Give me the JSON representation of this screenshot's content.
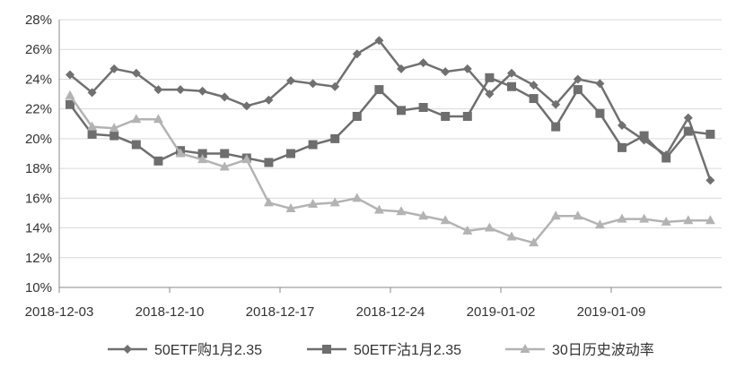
{
  "chart_data": {
    "type": "line",
    "title": "",
    "xlabel": "",
    "ylabel": "",
    "ylim": [
      0.1,
      0.28
    ],
    "y_ticks": [
      "10%",
      "12%",
      "14%",
      "16%",
      "18%",
      "20%",
      "22%",
      "24%",
      "26%",
      "28%"
    ],
    "x_tick_labels": [
      "2018-12-03",
      "2018-12-10",
      "2018-12-17",
      "2018-12-24",
      "2019-01-02",
      "2019-01-09"
    ],
    "grid": "horizontal",
    "legend_position": "bottom",
    "dates": [
      "2018-12-03",
      "2018-12-04",
      "2018-12-05",
      "2018-12-06",
      "2018-12-07",
      "2018-12-10",
      "2018-12-11",
      "2018-12-12",
      "2018-12-13",
      "2018-12-14",
      "2018-12-17",
      "2018-12-18",
      "2018-12-19",
      "2018-12-20",
      "2018-12-21",
      "2018-12-24",
      "2018-12-25",
      "2018-12-26",
      "2018-12-27",
      "2018-12-28",
      "2019-01-02",
      "2019-01-03",
      "2019-01-04",
      "2019-01-07",
      "2019-01-08",
      "2019-01-09",
      "2019-01-10",
      "2019-01-11",
      "2019-01-14",
      "2019-01-15"
    ],
    "series": [
      {
        "name": "50ETF购1月2.35",
        "marker": "diamond",
        "color": "#707070",
        "values": [
          0.243,
          0.231,
          0.247,
          0.244,
          0.233,
          0.233,
          0.232,
          0.228,
          0.222,
          0.226,
          0.239,
          0.237,
          0.235,
          0.257,
          0.266,
          0.247,
          0.251,
          0.245,
          0.247,
          0.23,
          0.244,
          0.236,
          0.223,
          0.24,
          0.237,
          0.209,
          0.199,
          0.189,
          0.214,
          0.172
        ]
      },
      {
        "name": "50ETF沽1月2.35",
        "marker": "square",
        "color": "#6e6e6e",
        "values": [
          0.223,
          0.203,
          0.202,
          0.196,
          0.185,
          0.192,
          0.19,
          0.19,
          0.187,
          0.184,
          0.19,
          0.196,
          0.2,
          0.215,
          0.233,
          0.219,
          0.221,
          0.215,
          0.215,
          0.241,
          0.235,
          0.227,
          0.208,
          0.233,
          0.217,
          0.194,
          0.202,
          0.187,
          0.205,
          0.203
        ]
      },
      {
        "name": "30日历史波动率",
        "marker": "triangle",
        "color": "#b3b3b3",
        "values": [
          0.229,
          0.208,
          0.207,
          0.213,
          0.213,
          0.19,
          0.186,
          0.181,
          0.186,
          0.157,
          0.153,
          0.156,
          0.157,
          0.16,
          0.152,
          0.151,
          0.148,
          0.145,
          0.138,
          0.14,
          0.134,
          0.13,
          0.148,
          0.148,
          0.142,
          0.146,
          0.146,
          0.144,
          0.145,
          0.145
        ]
      }
    ]
  }
}
